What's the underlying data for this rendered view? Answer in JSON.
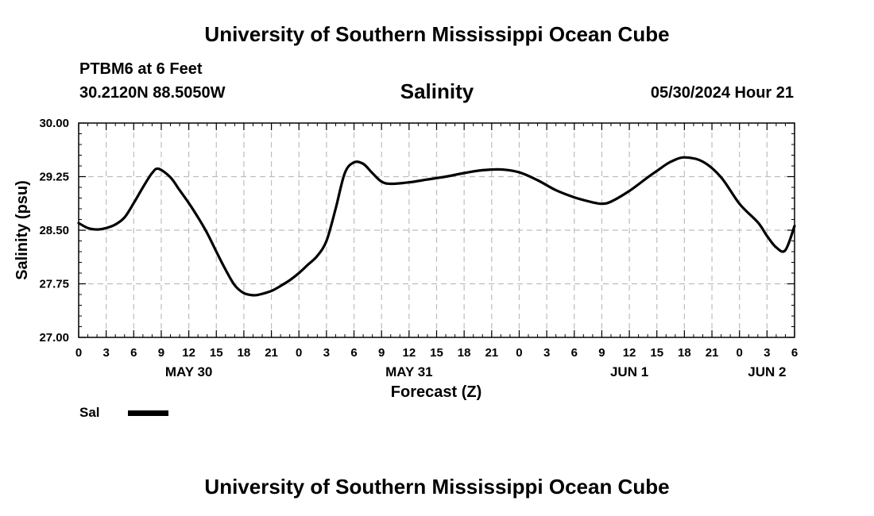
{
  "header": {
    "title": "University of Southern Mississippi Ocean Cube",
    "station": "PTBM6 at 6 Feet",
    "coordinates": "30.2120N  88.5050W",
    "timestamp": "05/30/2024 Hour 21"
  },
  "footer": {
    "title": "University of Southern Mississippi Ocean Cube"
  },
  "legend": {
    "label": "Sal"
  },
  "chart_data": {
    "type": "line",
    "title": "Salinity",
    "xlabel": "Forecast (Z)",
    "ylabel": "Salinity (psu)",
    "x_unit": "hours from 2024-05-30 00Z",
    "xlim": [
      0,
      78
    ],
    "ylim": [
      27.0,
      30.0
    ],
    "grid": true,
    "legend_position": "bottom-left",
    "yticks": [
      27.0,
      27.75,
      28.5,
      29.25,
      30.0
    ],
    "ytick_labels": [
      "27.00",
      "27.75",
      "28.50",
      "29.25",
      "30.00"
    ],
    "xticks": [
      0,
      3,
      6,
      9,
      12,
      15,
      18,
      21,
      24,
      27,
      30,
      33,
      36,
      39,
      42,
      45,
      48,
      51,
      54,
      57,
      60,
      63,
      66,
      69,
      72,
      75,
      78
    ],
    "xtick_labels": [
      "0",
      "3",
      "6",
      "9",
      "12",
      "15",
      "18",
      "21",
      "0",
      "3",
      "6",
      "9",
      "12",
      "15",
      "18",
      "21",
      "0",
      "3",
      "6",
      "9",
      "12",
      "15",
      "18",
      "21",
      "0",
      "3",
      "6"
    ],
    "date_labels": [
      {
        "x": 12,
        "text": "MAY 30"
      },
      {
        "x": 36,
        "text": "MAY 31"
      },
      {
        "x": 60,
        "text": "JUN 1"
      },
      {
        "x": 75,
        "text": "JUN 2"
      }
    ],
    "series": [
      {
        "name": "Sal",
        "color": "#000000",
        "x": [
          0,
          1,
          2,
          3,
          4,
          5,
          6,
          7,
          8,
          8.7,
          10,
          11,
          12,
          13,
          14,
          15,
          16,
          17,
          18,
          19,
          19.7,
          21,
          22,
          23,
          24,
          25,
          26,
          27,
          28,
          29,
          30,
          31,
          32,
          33,
          34,
          36,
          38,
          40,
          42,
          44,
          46,
          48,
          50,
          52,
          54,
          56,
          57,
          58,
          60,
          62,
          63,
          64,
          64.7,
          66,
          68,
          70,
          72,
          74,
          75,
          76,
          77,
          78
        ],
        "y": [
          28.6,
          28.53,
          28.51,
          28.53,
          28.58,
          28.68,
          28.88,
          29.1,
          29.3,
          29.36,
          29.24,
          29.06,
          28.88,
          28.68,
          28.46,
          28.2,
          27.95,
          27.73,
          27.62,
          27.59,
          27.6,
          27.65,
          27.72,
          27.8,
          27.9,
          28.02,
          28.14,
          28.35,
          28.8,
          29.3,
          29.45,
          29.43,
          29.3,
          29.18,
          29.15,
          29.17,
          29.21,
          29.25,
          29.3,
          29.34,
          29.35,
          29.31,
          29.2,
          29.06,
          28.96,
          28.89,
          28.87,
          28.9,
          29.05,
          29.24,
          29.33,
          29.42,
          29.47,
          29.52,
          29.46,
          29.24,
          28.87,
          28.61,
          28.42,
          28.26,
          28.22,
          28.56
        ]
      }
    ]
  }
}
